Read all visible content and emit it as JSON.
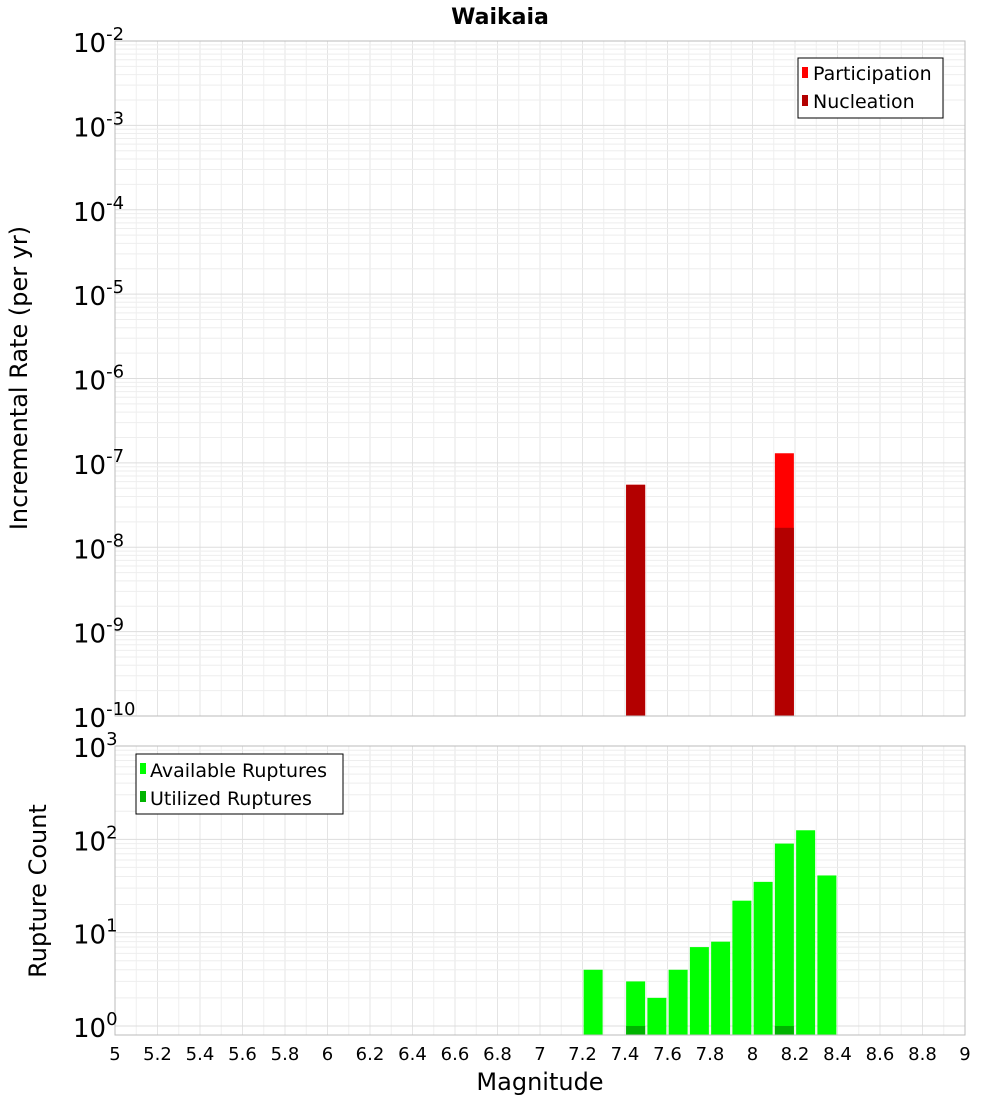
{
  "chart_data": [
    {
      "type": "bar",
      "title": "Waikaia",
      "xlabel": "",
      "ylabel": "Incremental Rate (per yr)",
      "yscale": "log",
      "xlim": [
        5,
        9
      ],
      "ylim": [
        1e-10,
        0.01
      ],
      "y_tick_labels": [
        {
          "base": "10",
          "exp": "-10"
        },
        {
          "base": "10",
          "exp": "-9"
        },
        {
          "base": "10",
          "exp": "-8"
        },
        {
          "base": "10",
          "exp": "-7"
        },
        {
          "base": "10",
          "exp": "-6"
        },
        {
          "base": "10",
          "exp": "-5"
        },
        {
          "base": "10",
          "exp": "-4"
        },
        {
          "base": "10",
          "exp": "-3"
        },
        {
          "base": "10",
          "exp": "-2"
        }
      ],
      "grid": true,
      "legend_position": "top-right",
      "series": [
        {
          "name": "Participation",
          "color": "#ff0000",
          "x": [
            7.45,
            8.15
          ],
          "values": [
            5.5e-08,
            1.3e-07
          ]
        },
        {
          "name": "Nucleation",
          "color": "#b30000",
          "x": [
            7.45,
            8.15
          ],
          "values": [
            5.5e-08,
            1.7e-08
          ]
        }
      ]
    },
    {
      "type": "bar",
      "title": "",
      "xlabel": "Magnitude",
      "ylabel": "Rupture Count",
      "yscale": "log",
      "xlim": [
        5,
        9
      ],
      "ylim": [
        0.8,
        1000
      ],
      "x_ticks": [
        "5",
        "5.2",
        "5.4",
        "5.6",
        "5.8",
        "6",
        "6.2",
        "6.4",
        "6.6",
        "6.8",
        "7",
        "7.2",
        "7.4",
        "7.6",
        "7.8",
        "8",
        "8.2",
        "8.4",
        "8.6",
        "8.8",
        "9"
      ],
      "y_tick_labels": [
        {
          "base": "10",
          "exp": "0"
        },
        {
          "base": "10",
          "exp": "1"
        },
        {
          "base": "10",
          "exp": "2"
        },
        {
          "base": "10",
          "exp": "3"
        }
      ],
      "grid": true,
      "legend_position": "top-left",
      "series": [
        {
          "name": "Available Ruptures",
          "color": "#00ff00",
          "x": [
            7.25,
            7.45,
            7.55,
            7.65,
            7.75,
            7.85,
            7.95,
            8.05,
            8.15,
            8.25,
            8.35
          ],
          "values": [
            4,
            3,
            2,
            4,
            7,
            8,
            22,
            35,
            90,
            125,
            41
          ]
        },
        {
          "name": "Utilized Ruptures",
          "color": "#00b300",
          "x": [
            7.45,
            8.15
          ],
          "values": [
            1,
            1
          ]
        }
      ]
    }
  ]
}
